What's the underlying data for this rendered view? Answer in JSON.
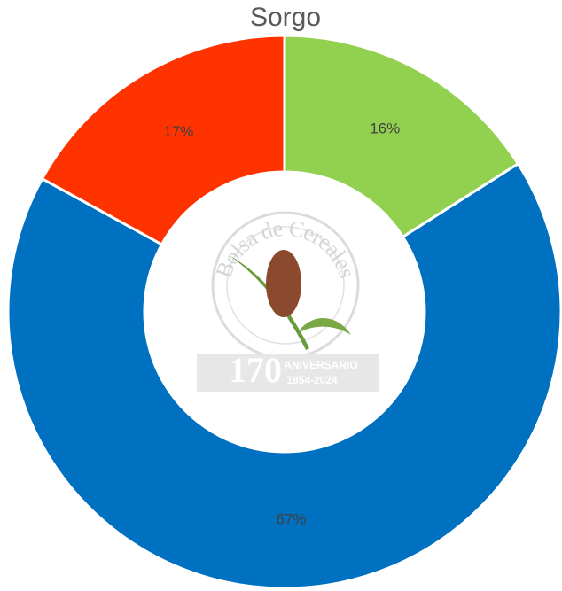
{
  "chart_data": {
    "type": "donut",
    "title": "Sorgo",
    "categories": [
      null,
      null,
      null
    ],
    "values": [
      16,
      67,
      17
    ],
    "value_labels": [
      "16%",
      "67%",
      "17%"
    ],
    "colors": [
      "#92d050",
      "#0070c0",
      "#ff3300"
    ],
    "logo": {
      "name": "Bolsa de Cereales",
      "number": "170",
      "tagline": "ANIVERSARIO",
      "years": "1854-2024"
    }
  }
}
